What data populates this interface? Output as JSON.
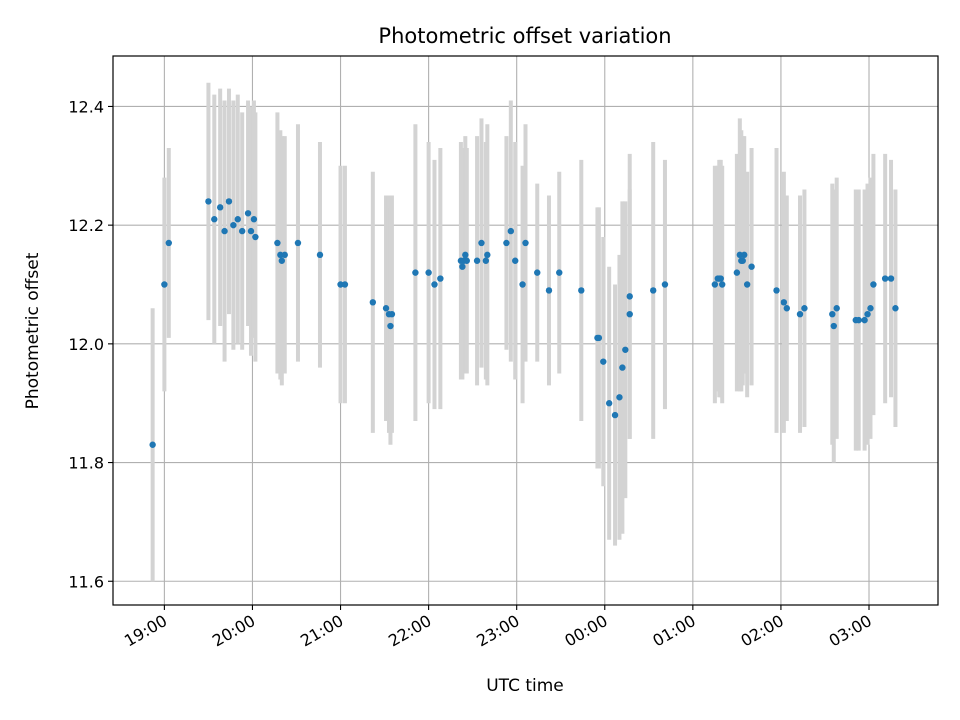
{
  "chart_data": {
    "type": "scatter",
    "title": "Photometric offset variation",
    "xlabel": "UTC time",
    "ylabel": "Photometric offset",
    "xlim": [
      "18:25",
      "03:47"
    ],
    "ylim": [
      11.56,
      12.485
    ],
    "grid": true,
    "x_ticks": [
      "19:00",
      "20:00",
      "21:00",
      "22:00",
      "23:00",
      "00:00",
      "01:00",
      "02:00",
      "03:00"
    ],
    "y_ticks": [
      11.6,
      11.8,
      12.0,
      12.2,
      12.4
    ],
    "colors": {
      "points": "#1f77b4",
      "errorbars": "#d3d3d3",
      "grid": "#b0b0b0"
    },
    "series": [
      {
        "x": [
          "18:52",
          "19:00",
          "19:03",
          "19:30",
          "19:34",
          "19:38",
          "19:41",
          "19:44",
          "19:47",
          "19:50",
          "19:53",
          "19:57",
          "19:59",
          "20:01",
          "20:02",
          "20:17",
          "20:19",
          "20:20",
          "20:22",
          "20:31",
          "20:46",
          "21:00",
          "21:03",
          "21:22",
          "21:31",
          "21:33",
          "21:34",
          "21:35",
          "21:51",
          "22:00",
          "22:04",
          "22:08",
          "22:22",
          "22:23",
          "22:24",
          "22:25",
          "22:26",
          "22:33",
          "22:36",
          "22:39",
          "22:40",
          "22:53",
          "22:56",
          "22:59",
          "23:04",
          "23:06",
          "23:14",
          "23:22",
          "23:29",
          "23:44",
          "23:55",
          "23:56",
          "23:59",
          "00:03",
          "00:07",
          "00:10",
          "00:12",
          "00:14",
          "00:17",
          "00:17",
          "00:33",
          "00:41",
          "01:15",
          "01:17",
          "01:18",
          "01:19",
          "01:20",
          "01:30",
          "01:32",
          "01:33",
          "01:34",
          "01:35",
          "01:37",
          "01:40",
          "01:57",
          "02:02",
          "02:04",
          "02:13",
          "02:16",
          "02:35",
          "02:36",
          "02:38",
          "02:51",
          "02:53",
          "02:57",
          "02:59",
          "03:01",
          "03:03",
          "03:11",
          "03:15",
          "03:18"
        ],
        "y": [
          11.83,
          12.1,
          12.17,
          12.24,
          12.21,
          12.23,
          12.19,
          12.24,
          12.2,
          12.21,
          12.19,
          12.22,
          12.19,
          12.21,
          12.18,
          12.17,
          12.15,
          12.14,
          12.15,
          12.17,
          12.15,
          12.1,
          12.1,
          12.07,
          12.06,
          12.05,
          12.03,
          12.05,
          12.12,
          12.12,
          12.1,
          12.11,
          12.14,
          12.13,
          12.14,
          12.15,
          12.14,
          12.14,
          12.17,
          12.14,
          12.15,
          12.17,
          12.19,
          12.14,
          12.1,
          12.17,
          12.12,
          12.09,
          12.12,
          12.09,
          12.01,
          12.01,
          11.97,
          11.9,
          11.88,
          11.91,
          11.96,
          11.99,
          12.08,
          12.05,
          12.09,
          12.1,
          12.1,
          12.11,
          12.11,
          12.11,
          12.1,
          12.12,
          12.15,
          12.14,
          12.14,
          12.15,
          12.1,
          12.13,
          12.09,
          12.07,
          12.06,
          12.05,
          12.06,
          12.05,
          12.03,
          12.06,
          12.04,
          12.04,
          12.04,
          12.05,
          12.06,
          12.1,
          12.11,
          12.11,
          12.06
        ],
        "yerr": [
          0.23,
          0.18,
          0.16,
          0.2,
          0.21,
          0.2,
          0.22,
          0.19,
          0.21,
          0.21,
          0.2,
          0.19,
          0.21,
          0.2,
          0.21,
          0.22,
          0.21,
          0.21,
          0.2,
          0.2,
          0.19,
          0.2,
          0.2,
          0.22,
          0.19,
          0.2,
          0.2,
          0.2,
          0.25,
          0.22,
          0.21,
          0.22,
          0.2,
          0.19,
          0.19,
          0.2,
          0.19,
          0.21,
          0.21,
          0.2,
          0.22,
          0.18,
          0.22,
          0.2,
          0.2,
          0.2,
          0.15,
          0.16,
          0.17,
          0.22,
          0.22,
          0.22,
          0.21,
          0.23,
          0.22,
          0.24,
          0.28,
          0.25,
          0.24,
          0.21,
          0.25,
          0.21,
          0.2,
          0.19,
          0.2,
          0.2,
          0.2,
          0.2,
          0.23,
          0.22,
          0.21,
          0.2,
          0.19,
          0.2,
          0.24,
          0.22,
          0.19,
          0.2,
          0.2,
          0.22,
          0.23,
          0.22,
          0.22,
          0.22,
          0.22,
          0.22,
          0.22,
          0.22,
          0.21,
          0.2,
          0.2
        ]
      }
    ]
  }
}
